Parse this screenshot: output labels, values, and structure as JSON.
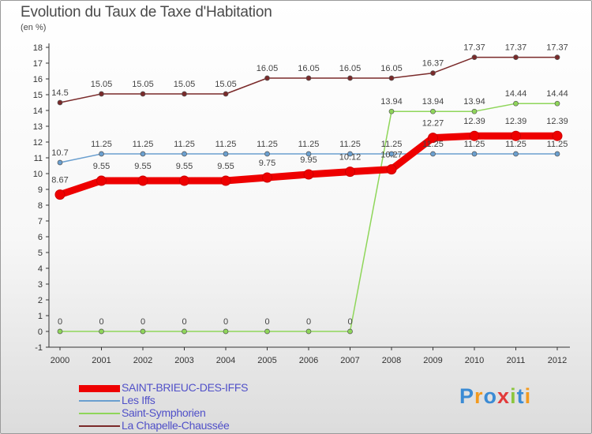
{
  "header": {
    "title": "Evolution du Taux de Taxe d'Habitation",
    "unit": "(en %)"
  },
  "logo": {
    "text": "Proxiti",
    "letters": [
      {
        "ch": "P",
        "color": "#3b8bd4"
      },
      {
        "ch": "r",
        "color": "#f39a1e"
      },
      {
        "ch": "o",
        "color": "#3b8bd4"
      },
      {
        "ch": "x",
        "color": "#e23a3a"
      },
      {
        "ch": "i",
        "color": "#8cc63f"
      },
      {
        "ch": "t",
        "color": "#3b8bd4"
      },
      {
        "ch": "i",
        "color": "#f39a1e"
      }
    ]
  },
  "chart_data": {
    "type": "line",
    "title": "Evolution du Taux de Taxe d'Habitation",
    "ylabel": "(en %)",
    "xlabel": "",
    "x": [
      2000,
      2001,
      2002,
      2003,
      2004,
      2005,
      2006,
      2007,
      2008,
      2009,
      2010,
      2011,
      2012
    ],
    "ylim": [
      -1,
      18
    ],
    "yticks": [
      -1,
      0,
      1,
      2,
      3,
      4,
      5,
      6,
      7,
      8,
      9,
      10,
      11,
      12,
      13,
      14,
      15,
      16,
      17,
      18
    ],
    "grid": false,
    "legend_position": "bottom-left",
    "series": [
      {
        "name": "SAINT-BRIEUC-DES-IFFS",
        "color": "#ee0000",
        "values": [
          8.67,
          9.55,
          9.55,
          9.55,
          9.55,
          9.75,
          9.95,
          10.12,
          10.27,
          12.27,
          12.39,
          12.39,
          12.39
        ],
        "labels": [
          "8.67",
          "9.55",
          "9.55",
          "9.55",
          "9.55",
          "9.75",
          "9.95",
          "10.12",
          "10.27",
          "12.27",
          "12.39",
          "12.39",
          "12.39"
        ]
      },
      {
        "name": "Les Iffs",
        "color": "#6a9fcf",
        "values": [
          10.7,
          11.25,
          11.25,
          11.25,
          11.25,
          11.25,
          11.25,
          11.25,
          11.25,
          11.25,
          11.25,
          11.25,
          11.25
        ],
        "labels": [
          "10.7",
          "11.25",
          "11.25",
          "11.25",
          "11.25",
          "11.25",
          "11.25",
          "11.25",
          "11.25",
          "11.25",
          "11.25",
          "11.25",
          "11.25"
        ]
      },
      {
        "name": "Saint-Symphorien",
        "color": "#8fd65a",
        "values": [
          0,
          0,
          0,
          0,
          0,
          0,
          0,
          0,
          13.94,
          13.94,
          13.94,
          14.44,
          14.44
        ],
        "labels": [
          "0",
          "0",
          "0",
          "0",
          "0",
          "0",
          "0",
          "0",
          "13.94",
          "13.94",
          "13.94",
          "14.44",
          "14.44"
        ]
      },
      {
        "name": "La Chapelle-Chaussée",
        "color": "#7a2a2a",
        "values": [
          14.5,
          15.05,
          15.05,
          15.05,
          15.05,
          16.05,
          16.05,
          16.05,
          16.05,
          16.37,
          17.37,
          17.37,
          17.37
        ],
        "labels": [
          "14.5",
          "15.05",
          "15.05",
          "15.05",
          "15.05",
          "16.05",
          "16.05",
          "16.05",
          "16.05",
          "16.37",
          "17.37",
          "17.37",
          "17.37"
        ]
      }
    ]
  }
}
